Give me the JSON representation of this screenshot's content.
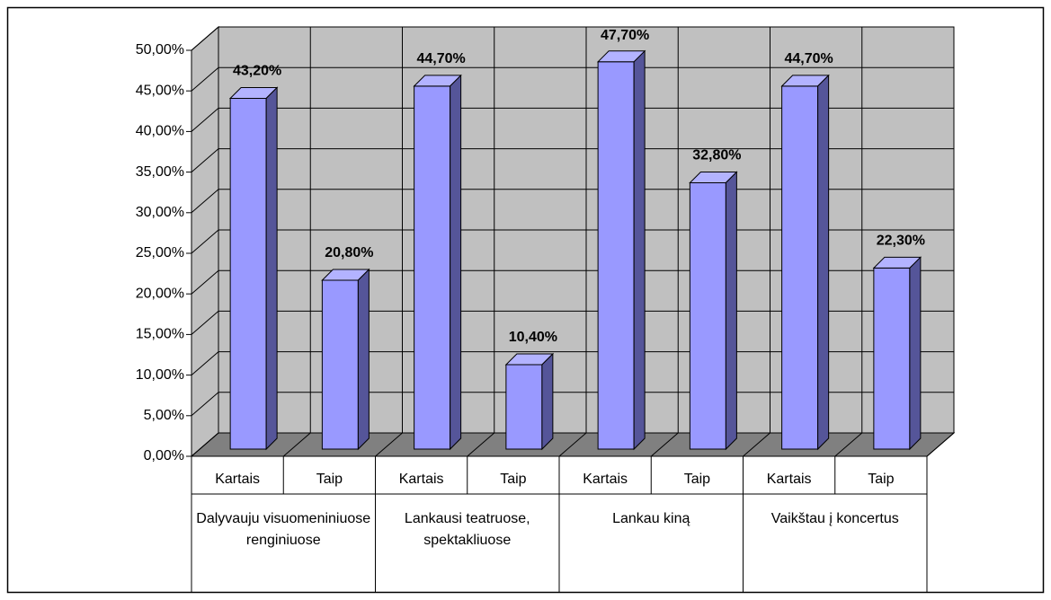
{
  "chart_data": {
    "type": "bar3d",
    "categories": [
      "Kartais",
      "Taip",
      "Kartais",
      "Taip",
      "Kartais",
      "Taip",
      "Kartais",
      "Taip"
    ],
    "groups": [
      "Dalyvauju visuomeniniuose renginiuose",
      "Lankausi teatruose, spektakliuose",
      "Lankau kiną",
      "Vaikštau į koncertus"
    ],
    "values": [
      43.2,
      20.8,
      44.7,
      10.4,
      47.7,
      32.8,
      44.7,
      22.3
    ],
    "value_labels": [
      "43,20%",
      "20,80%",
      "44,70%",
      "10,40%",
      "47,70%",
      "32,80%",
      "44,70%",
      "22,30%"
    ],
    "color": "#9999ff",
    "ylim": [
      0,
      50
    ],
    "yticks": [
      {
        "value": 0,
        "label": "0,00%"
      },
      {
        "value": 5,
        "label": "5,00%"
      },
      {
        "value": 10,
        "label": "10,00%"
      },
      {
        "value": 15,
        "label": "15,00%"
      },
      {
        "value": 20,
        "label": "20,00%"
      },
      {
        "value": 25,
        "label": "25,00%"
      },
      {
        "value": 30,
        "label": "30,00%"
      },
      {
        "value": 35,
        "label": "35,00%"
      },
      {
        "value": 40,
        "label": "40,00%"
      },
      {
        "value": 45,
        "label": "45,00%"
      },
      {
        "value": 50,
        "label": "50,00%"
      }
    ],
    "grid": true
  }
}
